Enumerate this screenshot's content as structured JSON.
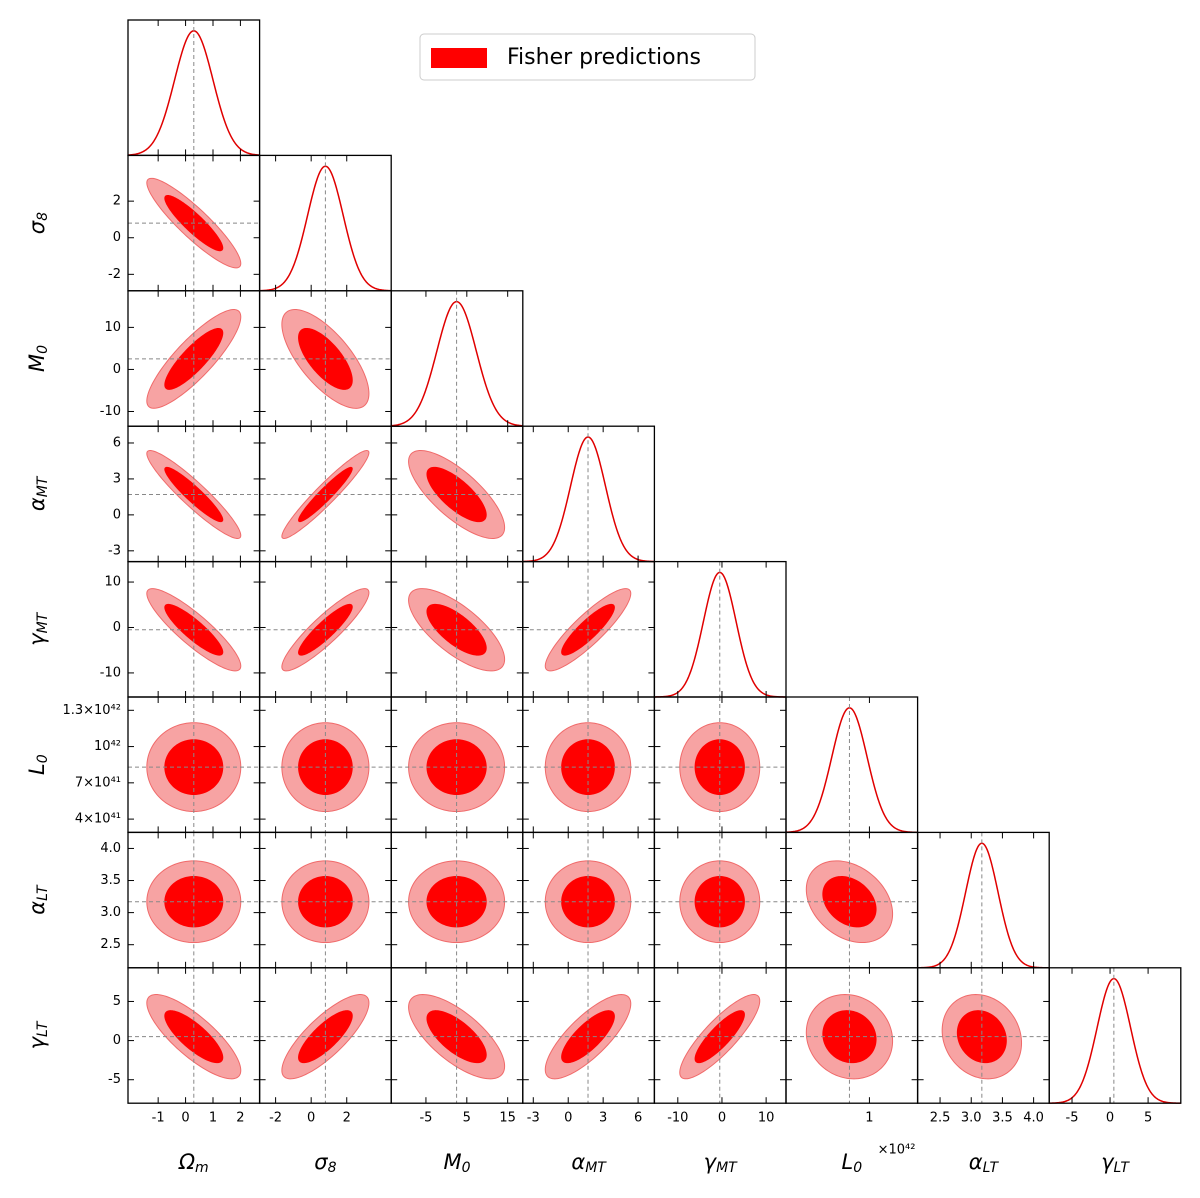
{
  "chart_data": {
    "type": "corner",
    "legend": {
      "label": "Fisher predictions",
      "color": "#ff0000"
    },
    "contour_levels": [
      0.68,
      0.95
    ],
    "colors": {
      "inner": "#ff0000",
      "outer": "#f7a3a3",
      "edge": "#f06a6a",
      "curve": "#e00000",
      "fiducial": "#888888"
    },
    "parameters": [
      {
        "symbol": "Ω",
        "subscript": "m",
        "fiducial": 0.3,
        "sigma": 0.7,
        "lim": [
          -2.1,
          2.7
        ],
        "xticks": [
          -1,
          0,
          1,
          2
        ]
      },
      {
        "symbol": "σ",
        "subscript": "8",
        "fiducial": 0.8,
        "sigma": 1.0,
        "lim": [
          -2.9,
          4.5
        ],
        "xticks": [
          -2,
          0,
          2
        ],
        "yticks": [
          -2,
          0,
          2
        ]
      },
      {
        "symbol": "M",
        "subscript": "0",
        "fiducial": 2.5,
        "sigma": 4.8,
        "lim": [
          -13.5,
          18.7
        ],
        "xticks": [
          -5,
          5,
          15
        ],
        "yticks": [
          -10,
          0,
          10
        ]
      },
      {
        "symbol": "α",
        "subscript": "MT",
        "fiducial": 1.7,
        "sigma": 1.5,
        "lim": [
          -3.9,
          7.4
        ],
        "xticks": [
          -3,
          0,
          3,
          6
        ],
        "yticks": [
          -3,
          0,
          3,
          6
        ]
      },
      {
        "symbol": "γ",
        "subscript": "MT",
        "fiducial": -0.5,
        "sigma": 3.7,
        "lim": [
          -15.3,
          14.5
        ],
        "xticks": [
          -10,
          0,
          10
        ],
        "yticks": [
          -10,
          0,
          10
        ]
      },
      {
        "symbol": "L",
        "subscript": "0",
        "fiducial": 8.3e+41,
        "sigma": 1.5e+41,
        "lim": [
          2.9e+41,
          1.41e+42
        ],
        "offset_label": "×10⁴²",
        "xticks": [
          {
            "value": 1e+42,
            "label": "1"
          }
        ],
        "yticks": [
          {
            "value": 4e+41,
            "label": "4×10⁴¹"
          },
          {
            "value": 7e+41,
            "label": "7×10⁴¹"
          },
          {
            "value": 1e+42,
            "label": "10⁴²"
          },
          {
            "value": 1.3e+42,
            "label": "1.3×10⁴²"
          }
        ]
      },
      {
        "symbol": "α",
        "subscript": "LT",
        "fiducial": 3.17,
        "sigma": 0.26,
        "lim": [
          2.14,
          4.25
        ],
        "xticks": [
          2.5,
          {
            "value": 3,
            "label": "3.0"
          },
          3.5,
          {
            "value": 4,
            "label": "4.0"
          }
        ],
        "yticks": [
          2.5,
          {
            "value": 3,
            "label": "3.0"
          },
          3.5,
          {
            "value": 4,
            "label": "4.0"
          }
        ]
      },
      {
        "symbol": "γ",
        "subscript": "LT",
        "fiducial": 0.5,
        "sigma": 2.2,
        "lim": [
          -8,
          9.3
        ],
        "xticks": [
          -5,
          0,
          5
        ],
        "yticks": [
          -5,
          0,
          5
        ]
      }
    ],
    "correlations": [
      [
        -0.9
      ],
      [
        0.85,
        -0.7
      ],
      [
        -0.93,
        0.95,
        -0.75
      ],
      [
        -0.88,
        0.9,
        -0.72,
        0.88
      ],
      [
        0,
        0,
        0,
        0,
        0
      ],
      [
        0,
        0,
        0,
        0,
        0,
        -0.3
      ],
      [
        -0.8,
        0.8,
        -0.7,
        0.78,
        0.85,
        -0.1,
        -0.15
      ]
    ]
  }
}
